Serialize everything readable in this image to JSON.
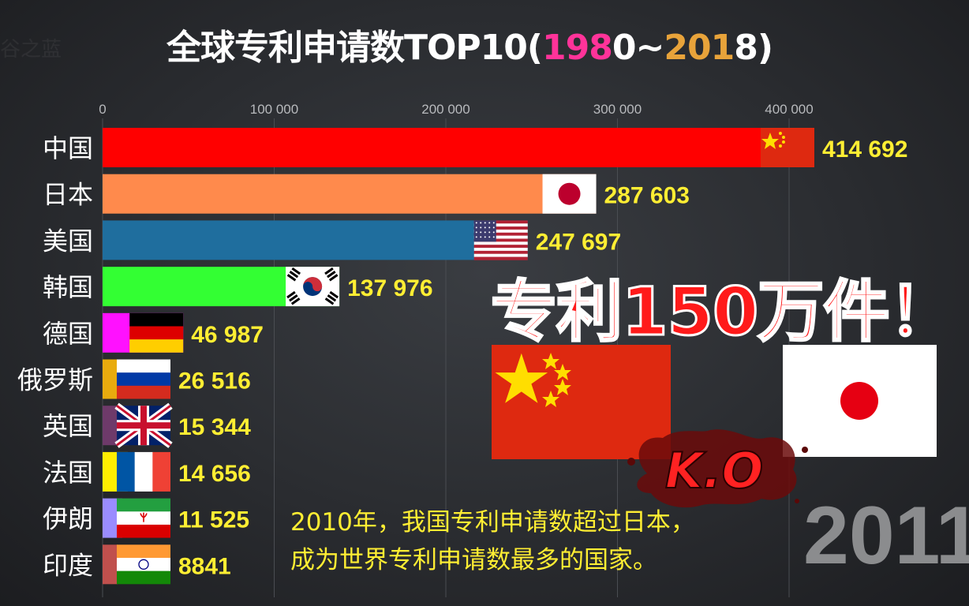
{
  "watermark": "谷之蓝",
  "title": {
    "prefix": "全球专利申请数TOP10(",
    "y1a": "198",
    "y1b": "0",
    "sep": "~",
    "y2a": "201",
    "y2b": "8",
    "suffix": ")",
    "colors": {
      "start": "#ff3399",
      "end": "#e8a33a",
      "text": "#ffffff"
    }
  },
  "slogan": "专利150万件！",
  "year_label": "2011",
  "ko_label": "K.O",
  "caption": {
    "line1": "2010年，我国专利申请数超过日本，",
    "line2": "成为世界专利申请数最多的国家。"
  },
  "chart_data": {
    "type": "bar",
    "orientation": "horizontal",
    "xlim": [
      0,
      430000
    ],
    "ticks": [
      {
        "value": 0,
        "label": "0"
      },
      {
        "value": 100000,
        "label": "100 000"
      },
      {
        "value": 200000,
        "label": "200 000"
      },
      {
        "value": 300000,
        "label": "300 000"
      },
      {
        "value": 400000,
        "label": "400 000"
      }
    ],
    "grid": true,
    "bars": [
      {
        "country": "中国",
        "value": 414692,
        "value_label": "414 692",
        "color": "#ff0000",
        "flag": "cn-flag"
      },
      {
        "country": "日本",
        "value": 287603,
        "value_label": "287 603",
        "color": "#ff8a4c",
        "flag": "jp-flag"
      },
      {
        "country": "美国",
        "value": 247697,
        "value_label": "247 697",
        "color": "#1f6e9e",
        "flag": "us-flag"
      },
      {
        "country": "韩国",
        "value": 137976,
        "value_label": "137 976",
        "color": "#33ff33",
        "flag": "kr-flag"
      },
      {
        "country": "德国",
        "value": 46987,
        "value_label": "46 987",
        "color": "#ff11ff",
        "flag": "de-flag"
      },
      {
        "country": "俄罗斯",
        "value": 26516,
        "value_label": "26 516",
        "color": "#e8ab0e",
        "flag": "ru-flag"
      },
      {
        "country": "英国",
        "value": 15344,
        "value_label": "15 344",
        "color": "#6e3a6a",
        "flag": "gb-flag"
      },
      {
        "country": "法国",
        "value": 14656,
        "value_label": "14 656",
        "color": "#ffee00",
        "flag": "fr-flag"
      },
      {
        "country": "伊朗",
        "value": 11525,
        "value_label": "11 525",
        "color": "#9a8cff",
        "flag": "ir-flag"
      },
      {
        "country": "印度",
        "value": 8841,
        "value_label": "8841",
        "color": "#c0504d",
        "flag": "in-flag"
      }
    ],
    "value_label_color": "#ffee33"
  }
}
